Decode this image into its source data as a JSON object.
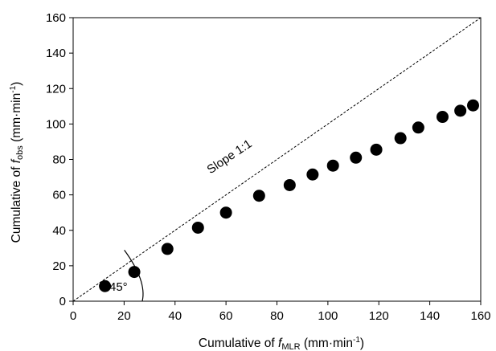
{
  "chart_data": {
    "type": "scatter",
    "xlabel": {
      "prefix": "Cumulative of ",
      "var": "f",
      "sub": "MLR",
      "unit": " (mm·min",
      "exp": "-1",
      "close": ")"
    },
    "ylabel": {
      "prefix": "Cumulative of ",
      "var": "f",
      "sub": "obs",
      "unit": " (mm·min",
      "exp": "-1",
      "close": ")"
    },
    "xlim": [
      0,
      160
    ],
    "ylim": [
      0,
      160
    ],
    "xticks": [
      0,
      20,
      40,
      60,
      80,
      100,
      120,
      140,
      160
    ],
    "yticks": [
      0,
      20,
      40,
      60,
      80,
      100,
      120,
      140,
      160
    ],
    "grid": false,
    "series": [
      {
        "x": [
          12.5,
          24,
          37,
          49,
          60,
          73,
          85,
          94,
          102,
          111,
          119,
          128.5,
          135.5,
          145,
          152,
          157
        ],
        "y": [
          8.5,
          16.5,
          29.5,
          41.5,
          50,
          59.5,
          65.5,
          71.5,
          76.5,
          81,
          85.5,
          92,
          98,
          104,
          107.5,
          110.5
        ],
        "color": "#000000"
      }
    ],
    "reference_line": {
      "label": "Slope 1:1",
      "from": [
        0,
        0
      ],
      "to": [
        160,
        160
      ],
      "style": "dashed"
    },
    "angle_annotation": {
      "label": "45°"
    }
  }
}
